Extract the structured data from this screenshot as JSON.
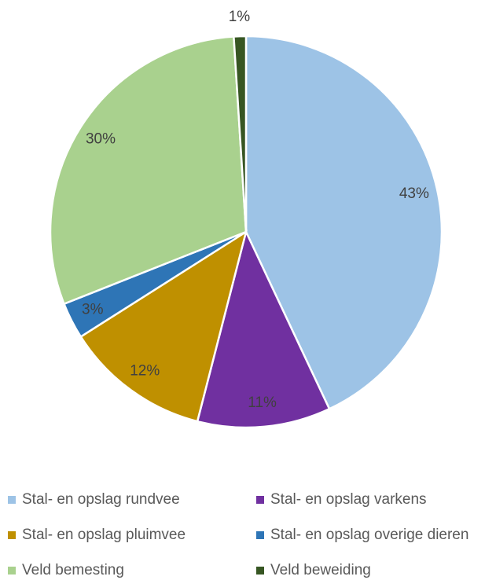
{
  "chart_data": {
    "type": "pie",
    "categories": [
      "Stal- en opslag rundvee",
      "Stal- en opslag varkens",
      "Stal- en opslag pluimvee",
      "Stal- en opslag overige dieren",
      "Veld bemesting",
      "Veld beweiding"
    ],
    "values": [
      43,
      11,
      12,
      3,
      30,
      1
    ],
    "value_labels": [
      "43%",
      "11%",
      "12%",
      "3%",
      "30%",
      "1%"
    ],
    "colors": [
      "#9dc3e6",
      "#7030a0",
      "#bf9000",
      "#2e75b6",
      "#a9d18e",
      "#375623"
    ]
  }
}
